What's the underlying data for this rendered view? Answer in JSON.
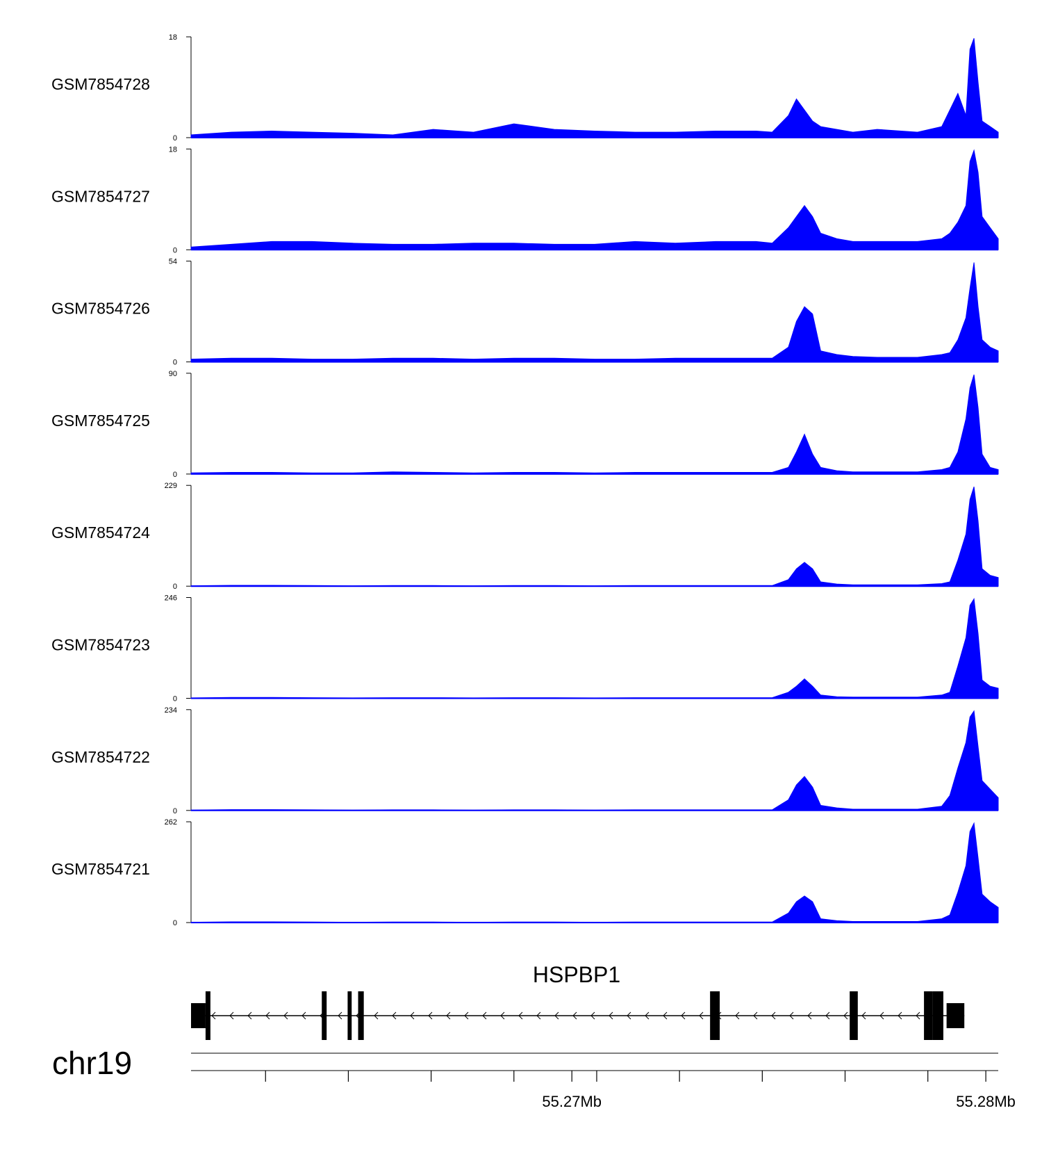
{
  "colors": {
    "signal": "#0000ff",
    "axis": "#000000",
    "gene": "#000000",
    "line": "#808080"
  },
  "chart_data": {
    "type": "area",
    "title": "",
    "xlabel": "",
    "chromosome": "chr19",
    "x_range_mb": [
      55.2608,
      55.2803
    ],
    "x_ticks_mb": [
      55.2626,
      55.2646,
      55.2666,
      55.2686,
      55.2706,
      55.2726,
      55.2746,
      55.2766,
      55.2786,
      55.2806
    ],
    "x_tick_labels": [
      {
        "value": 55.27,
        "label": "55.27Mb"
      },
      {
        "value": 55.28,
        "label": "55.28Mb"
      }
    ],
    "x_profile_frac": [
      0.0,
      0.05,
      0.1,
      0.15,
      0.2,
      0.25,
      0.3,
      0.35,
      0.4,
      0.45,
      0.5,
      0.55,
      0.6,
      0.65,
      0.7,
      0.72,
      0.74,
      0.75,
      0.76,
      0.77,
      0.78,
      0.8,
      0.82,
      0.85,
      0.9,
      0.93,
      0.94,
      0.95,
      0.96,
      0.965,
      0.97,
      0.975,
      0.98,
      0.99,
      1.0
    ],
    "series": [
      {
        "name": "GSM7854728",
        "ymax": "18",
        "ymin": "0",
        "values": [
          0.5,
          1.0,
          1.2,
          1.0,
          0.8,
          0.5,
          1.5,
          1.0,
          2.5,
          1.5,
          1.2,
          1.0,
          1.0,
          1.2,
          1.2,
          1.0,
          4.0,
          7.0,
          5.0,
          3.0,
          2.0,
          1.5,
          1.0,
          1.5,
          1.0,
          2.0,
          5.0,
          8.0,
          4.0,
          16.0,
          18.0,
          10.0,
          3.0,
          2.0,
          1.0
        ]
      },
      {
        "name": "GSM7854727",
        "ymax": "18",
        "ymin": "0",
        "values": [
          0.5,
          1.0,
          1.5,
          1.5,
          1.2,
          1.0,
          1.0,
          1.2,
          1.2,
          1.0,
          1.0,
          1.5,
          1.2,
          1.5,
          1.5,
          1.2,
          4.0,
          6.0,
          8.0,
          6.0,
          3.0,
          2.0,
          1.5,
          1.5,
          1.5,
          2.0,
          3.0,
          5.0,
          8.0,
          16.0,
          18.0,
          14.0,
          6.0,
          4.0,
          2.0
        ]
      },
      {
        "name": "GSM7854726",
        "ymax": "54",
        "ymin": "0",
        "values": [
          1.5,
          2.0,
          2.0,
          1.5,
          1.5,
          2.0,
          2.0,
          1.5,
          2.0,
          2.0,
          1.5,
          1.5,
          2.0,
          2.0,
          2.0,
          2.0,
          8.0,
          22.0,
          30.0,
          26.0,
          6.0,
          4.0,
          3.0,
          2.5,
          2.5,
          4.0,
          5.0,
          12.0,
          24.0,
          40.0,
          54.0,
          30.0,
          12.0,
          8.0,
          6.0
        ]
      },
      {
        "name": "GSM7854725",
        "ymax": "90",
        "ymin": "0",
        "values": [
          1.0,
          1.5,
          1.5,
          1.0,
          1.0,
          2.0,
          1.5,
          1.0,
          1.5,
          1.5,
          1.0,
          1.5,
          1.5,
          1.5,
          1.5,
          1.5,
          6.0,
          20.0,
          36.0,
          18.0,
          6.0,
          3.0,
          2.0,
          2.0,
          2.0,
          4.0,
          6.0,
          20.0,
          50.0,
          78.0,
          90.0,
          60.0,
          18.0,
          6.0,
          4.0
        ]
      },
      {
        "name": "GSM7854724",
        "ymax": "229",
        "ymin": "0",
        "values": [
          1.0,
          2.0,
          2.0,
          1.5,
          1.0,
          1.5,
          1.5,
          1.0,
          1.5,
          1.5,
          1.0,
          1.5,
          1.5,
          1.5,
          1.5,
          1.5,
          15.0,
          40.0,
          55.0,
          40.0,
          10.0,
          5.0,
          3.0,
          3.0,
          3.0,
          6.0,
          10.0,
          60.0,
          120.0,
          200.0,
          229.0,
          150.0,
          40.0,
          25.0,
          20.0
        ]
      },
      {
        "name": "GSM7854723",
        "ymax": "246",
        "ymin": "0",
        "values": [
          1.0,
          2.0,
          2.0,
          1.5,
          1.0,
          1.5,
          1.5,
          1.0,
          1.5,
          1.5,
          1.0,
          1.5,
          1.5,
          1.5,
          1.5,
          1.5,
          15.0,
          30.0,
          48.0,
          30.0,
          8.0,
          4.0,
          3.0,
          3.0,
          3.0,
          8.0,
          15.0,
          80.0,
          150.0,
          230.0,
          246.0,
          160.0,
          45.0,
          30.0,
          25.0
        ]
      },
      {
        "name": "GSM7854722",
        "ymax": "234",
        "ymin": "0",
        "values": [
          1.0,
          2.0,
          2.0,
          1.5,
          1.0,
          1.5,
          1.5,
          1.0,
          1.5,
          1.5,
          1.0,
          1.5,
          1.5,
          1.5,
          1.5,
          1.5,
          25.0,
          60.0,
          80.0,
          55.0,
          12.0,
          6.0,
          3.0,
          3.0,
          3.0,
          10.0,
          35.0,
          100.0,
          160.0,
          220.0,
          234.0,
          150.0,
          70.0,
          50.0,
          30.0
        ]
      },
      {
        "name": "GSM7854721",
        "ymax": "262",
        "ymin": "0",
        "values": [
          1.0,
          2.0,
          2.0,
          1.5,
          1.0,
          1.5,
          1.5,
          1.0,
          1.5,
          1.5,
          1.0,
          1.5,
          1.5,
          1.5,
          1.5,
          1.5,
          25.0,
          55.0,
          70.0,
          55.0,
          10.0,
          5.0,
          3.0,
          3.0,
          3.0,
          10.0,
          20.0,
          80.0,
          150.0,
          240.0,
          262.0,
          170.0,
          75.0,
          55.0,
          40.0
        ]
      }
    ],
    "gene": {
      "name": "HSPBP1",
      "strand": "-",
      "span_frac": [
        0.0,
        0.958
      ],
      "exons_frac": [
        [
          0.0,
          0.018
        ],
        [
          0.018,
          0.024
        ],
        [
          0.162,
          0.168
        ],
        [
          0.194,
          0.199
        ],
        [
          0.207,
          0.214
        ],
        [
          0.643,
          0.655
        ],
        [
          0.816,
          0.826
        ],
        [
          0.908,
          0.919
        ],
        [
          0.919,
          0.932
        ],
        [
          0.936,
          0.958
        ]
      ]
    }
  }
}
